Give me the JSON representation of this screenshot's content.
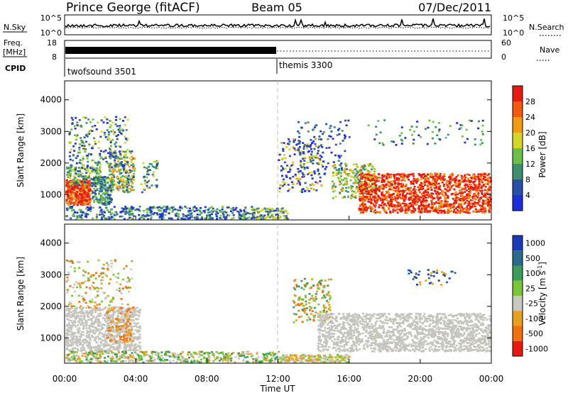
{
  "header": {
    "station": "Prince George (fitACF)",
    "beam": "Beam 05",
    "date": "07/Dec/2011"
  },
  "status_panel": {
    "nsky_label": "N.Sky",
    "nsky_ticks": [
      "10^5",
      "10^0"
    ],
    "nsearch_label": "N.Search",
    "nsearch_ticks": [
      "10^5",
      "10^0"
    ],
    "freq_label_1": "Freq.",
    "freq_label_2": "[MHz]",
    "freq_ticks": [
      "18",
      "8"
    ],
    "nave_label": "Nave",
    "nave_ticks": [
      "60",
      "0"
    ],
    "cpid_label": "CPID",
    "cpid_segments": [
      {
        "name": "twofsound 3501",
        "start_hour": 0,
        "end_hour": 12
      },
      {
        "name": "themis 3300",
        "start_hour": 12,
        "end_hour": 24
      }
    ]
  },
  "chart_data": [
    {
      "type": "heatmap",
      "name": "power-panel",
      "xlabel": "",
      "ylabel": "Slant Range [km]",
      "xlim": [
        0,
        24
      ],
      "ylim": [
        200,
        4600
      ],
      "yticks": [
        1000,
        2000,
        3000,
        4000
      ],
      "colorbar": {
        "label": "Power [dB]",
        "levels": [
          0,
          4,
          8,
          12,
          16,
          20,
          24,
          28
        ],
        "tick_labels": [
          "4",
          "8",
          "12",
          "16",
          "20",
          "24",
          "28"
        ],
        "colors": [
          "#1c2ed8",
          "#2a4fa8",
          "#3e8f6f",
          "#6cc04a",
          "#d6d62a",
          "#f29a12",
          "#f05a10",
          "#e61a10"
        ]
      }
    },
    {
      "type": "heatmap",
      "name": "velocity-panel",
      "xlabel": "Time UT",
      "ylabel": "Slant Range [km]",
      "xlim": [
        0,
        24
      ],
      "ylim": [
        200,
        4600
      ],
      "xticks": [
        "00:00",
        "04:00",
        "08:00",
        "12:00",
        "16:00",
        "20:00",
        "00:00"
      ],
      "yticks": [
        1000,
        2000,
        3000,
        4000
      ],
      "colorbar": {
        "label": "Velocity [m s",
        "label_exp": "-1",
        "levels": [
          1000,
          500,
          100,
          25,
          -25,
          -100,
          -500,
          -1000
        ],
        "tick_labels": [
          "1000",
          "500",
          "100",
          "25",
          "-25",
          "-100",
          "-500",
          "-1000"
        ],
        "colors": [
          "#1c3ab8",
          "#2a6a8a",
          "#3e9a5a",
          "#7cc43a",
          "#c8c8c0",
          "#e8a020",
          "#f07010",
          "#e81a10"
        ]
      }
    }
  ],
  "colors": {
    "gray_scatter": "#c4c4bc",
    "dashed_line": "#c0c0c0"
  }
}
